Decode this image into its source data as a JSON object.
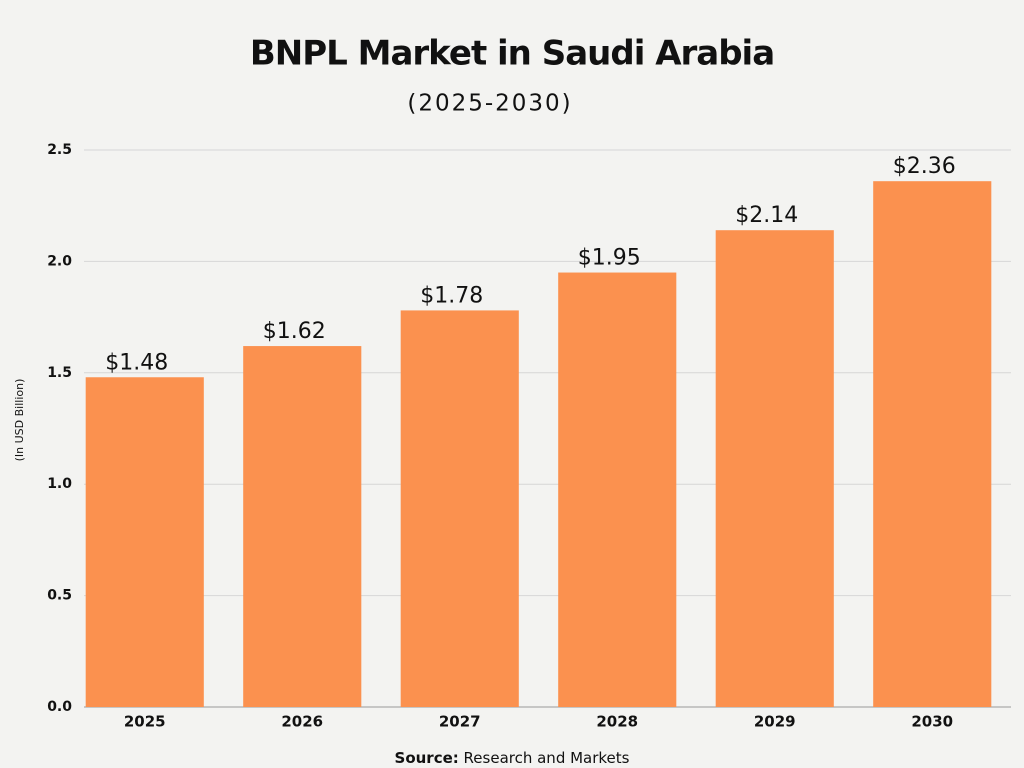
{
  "chart_data": {
    "type": "bar",
    "title": "BNPL Market in Saudi Arabia",
    "subtitle": "(2025-2030)",
    "y_label": "(In USD Billion)",
    "source": {
      "label": "Source:",
      "text": "Research and Markets"
    },
    "categories": [
      "2025",
      "2026",
      "2027",
      "2028",
      "2029",
      "2030"
    ],
    "values": [
      1.48,
      1.62,
      1.78,
      1.95,
      2.14,
      2.36
    ],
    "value_labels": [
      "$1.48",
      "$1.62",
      "$1.78",
      "$1.95",
      "$2.14",
      "$2.36"
    ],
    "color": "#fb914f",
    "ylim": [
      0,
      2.5
    ],
    "yticks": [
      {
        "value": 0,
        "label": "0.0"
      },
      0.5,
      {
        "value": 1,
        "label": "1.0"
      },
      {
        "value": 1.5,
        "label": "1.5"
      },
      {
        "value": 2,
        "label": "2.0"
      },
      2.5
    ],
    "grid": true
  }
}
